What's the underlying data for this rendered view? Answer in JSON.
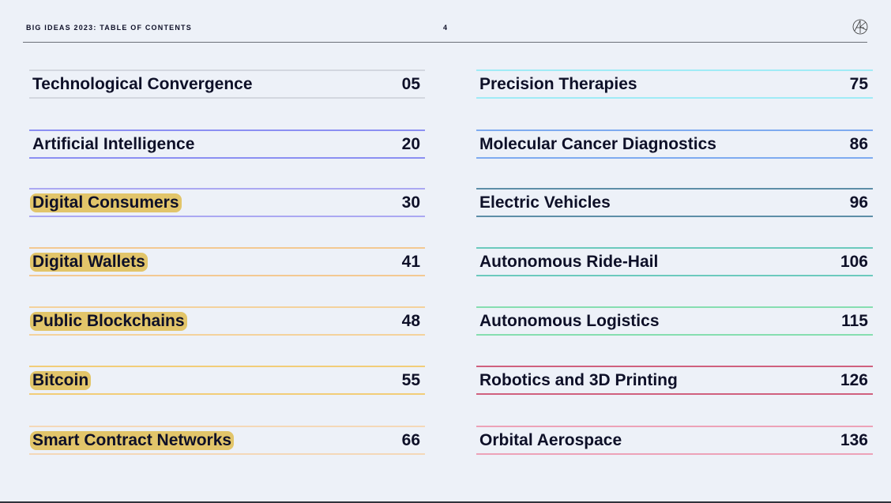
{
  "header": {
    "title": "BIG IDEAS 2023: TABLE OF CONTENTS",
    "page_number": "4",
    "logo_icon": "ark-logo"
  },
  "left_column": [
    {
      "label": "Technological Convergence",
      "page": "05",
      "color": "#d3d7df",
      "highlighted": false
    },
    {
      "label": "Artificial Intelligence",
      "page": "20",
      "color": "#8b8ff2",
      "highlighted": false
    },
    {
      "label": "Digital Consumers",
      "page": "30",
      "color": "#aba8f2",
      "highlighted": true
    },
    {
      "label": "Digital Wallets",
      "page": "41",
      "color": "#f3c992",
      "highlighted": true
    },
    {
      "label": "Public Blockchains",
      "page": "48",
      "color": "#f4d29c",
      "highlighted": true
    },
    {
      "label": "Bitcoin",
      "page": "55",
      "color": "#f2cd78",
      "highlighted": true
    },
    {
      "label": "Smart Contract Networks",
      "page": "66",
      "color": "#f4d8b8",
      "highlighted": true
    }
  ],
  "right_column": [
    {
      "label": "Precision Therapies",
      "page": "75",
      "color": "#a0ebf6",
      "highlighted": false
    },
    {
      "label": "Molecular Cancer Diagnostics",
      "page": "86",
      "color": "#7eaaf0",
      "highlighted": false
    },
    {
      "label": "Electric Vehicles",
      "page": "96",
      "color": "#5d8ea8",
      "highlighted": false
    },
    {
      "label": "Autonomous Ride-Hail",
      "page": "106",
      "color": "#6ccabd",
      "highlighted": false
    },
    {
      "label": "Autonomous Logistics",
      "page": "115",
      "color": "#86deb0",
      "highlighted": false
    },
    {
      "label": "Robotics and 3D Printing",
      "page": "126",
      "color": "#d0607e",
      "highlighted": false
    },
    {
      "label": "Orbital Aerospace",
      "page": "136",
      "color": "#eda2b8",
      "highlighted": false
    }
  ]
}
